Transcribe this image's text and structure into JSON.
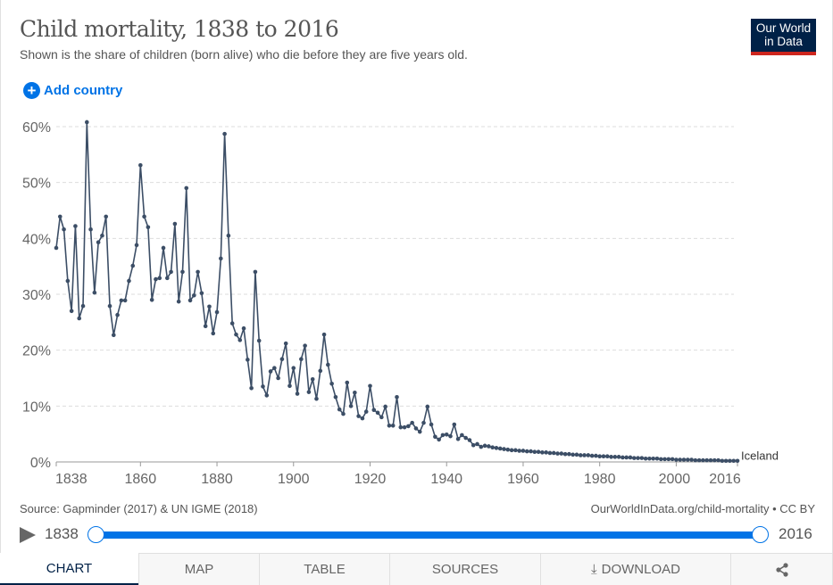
{
  "header": {
    "title": "Child mortality, 1838 to 2016",
    "subtitle": "Shown is the share of children (born alive) who die before they are five years old.",
    "logo_line1": "Our World",
    "logo_line2": "in Data",
    "add_country_label": "Add country",
    "add_icon": "+"
  },
  "footer": {
    "source": "Source: Gapminder (2017) & UN IGME (2018)",
    "credit": "OurWorldInData.org/child-mortality • CC BY"
  },
  "timeline": {
    "start_year": "1838",
    "end_year": "2016",
    "range_start_fraction": 0,
    "range_end_fraction": 1
  },
  "tabs": [
    {
      "label": "CHART",
      "active": true
    },
    {
      "label": "MAP"
    },
    {
      "label": "TABLE"
    },
    {
      "label": "SOURCES"
    },
    {
      "label": "DOWNLOAD",
      "icon": "download-icon",
      "glyph": "⤓"
    },
    {
      "label": "",
      "icon": "share-icon",
      "glyph": "⋖"
    }
  ],
  "colors": {
    "line": "#3c4e66",
    "accent": "#0073e6",
    "brand": "#002147",
    "brand_stripe": "#ce261e"
  },
  "chart_data": {
    "type": "line",
    "title": "Child mortality, 1838 to 2016",
    "xlabel": "",
    "ylabel": "",
    "xlim": [
      1838,
      2016
    ],
    "ylim": [
      0,
      60
    ],
    "yticks": [
      0,
      10,
      20,
      30,
      40,
      50,
      60
    ],
    "ytick_labels": [
      "0%",
      "10%",
      "20%",
      "30%",
      "40%",
      "50%",
      "60%"
    ],
    "xticks": [
      1838,
      1860,
      1880,
      1900,
      1920,
      1940,
      1960,
      1980,
      2000,
      2016
    ],
    "xtick_labels": [
      "1838",
      "1860",
      "1880",
      "1900",
      "1920",
      "1940",
      "1960",
      "1980",
      "2000",
      "2016"
    ],
    "grid": "horizontal-dashed",
    "series": [
      {
        "name": "Iceland",
        "start_year": 1838,
        "values": [
          38.3,
          43.9,
          41.6,
          32.4,
          27.0,
          42.2,
          25.7,
          27.9,
          60.8,
          41.6,
          30.3,
          39.3,
          40.5,
          43.9,
          27.9,
          22.7,
          26.3,
          28.9,
          28.9,
          32.4,
          35.1,
          38.8,
          53.1,
          43.9,
          42.0,
          29.0,
          32.7,
          32.9,
          38.3,
          32.9,
          34.0,
          42.6,
          28.7,
          34.0,
          49.0,
          28.9,
          29.8,
          34.0,
          30.2,
          24.3,
          27.8,
          23.0,
          26.8,
          36.4,
          58.7,
          40.5,
          24.8,
          22.8,
          21.8,
          23.9,
          18.3,
          13.2,
          34.0,
          21.7,
          13.5,
          11.9,
          16.2,
          16.8,
          15.0,
          18.4,
          21.2,
          13.6,
          16.8,
          12.2,
          18.4,
          20.8,
          12.5,
          14.8,
          11.3,
          16.3,
          22.8,
          17.4,
          14.0,
          11.6,
          9.4,
          8.6,
          14.2,
          10.0,
          12.4,
          8.2,
          7.8,
          9.0,
          13.6,
          9.3,
          8.8,
          8.0,
          9.9,
          6.5,
          6.5,
          11.6,
          6.2,
          6.2,
          6.4,
          7.0,
          6.0,
          5.4,
          7.0,
          9.9,
          6.7,
          4.5,
          4.0,
          4.8,
          4.9,
          4.6,
          6.7,
          4.1,
          4.8,
          4.3,
          3.9,
          3.0,
          3.2,
          2.7,
          2.9,
          2.8,
          2.6,
          2.5,
          2.4,
          2.3,
          2.2,
          2.1,
          2.1,
          2.0,
          2.0,
          1.9,
          1.9,
          1.8,
          1.8,
          1.7,
          1.7,
          1.6,
          1.6,
          1.5,
          1.5,
          1.4,
          1.4,
          1.3,
          1.3,
          1.2,
          1.2,
          1.2,
          1.1,
          1.1,
          1.0,
          1.0,
          1.0,
          0.9,
          0.9,
          0.9,
          0.8,
          0.8,
          0.8,
          0.7,
          0.7,
          0.7,
          0.6,
          0.6,
          0.6,
          0.6,
          0.5,
          0.5,
          0.5,
          0.5,
          0.4,
          0.4,
          0.4,
          0.4,
          0.4,
          0.3,
          0.3,
          0.3,
          0.3,
          0.3,
          0.3,
          0.3,
          0.2,
          0.2,
          0.2,
          0.2,
          0.2
        ]
      }
    ],
    "legend": "end-of-line label"
  }
}
